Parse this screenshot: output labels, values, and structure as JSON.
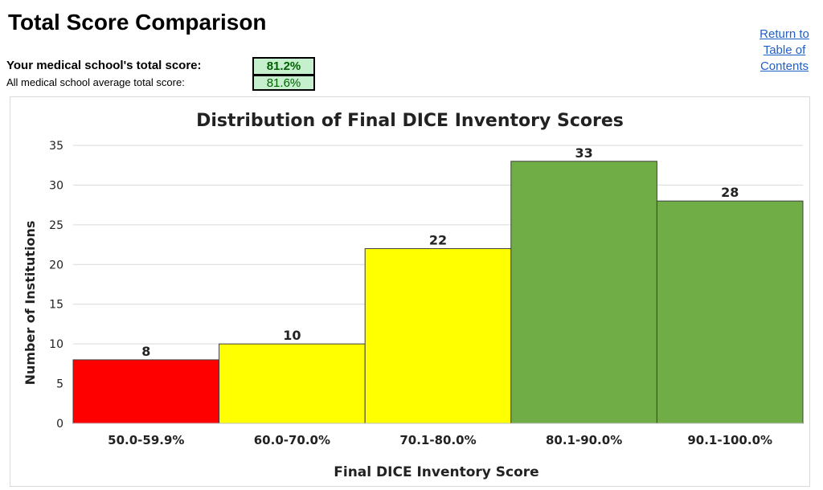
{
  "header": {
    "title": "Total Score Comparison",
    "toc_link": [
      "Return to",
      "Table of",
      "Contents"
    ]
  },
  "scores": {
    "your_label": "Your medical school's total score:",
    "your_value": "81.2%",
    "avg_label": "All medical school average total score:",
    "avg_value": "81.6%"
  },
  "colors": {
    "red": "#ff0000",
    "yellow": "#ffff00",
    "green": "#70ad47",
    "score_box_bg": "#c6efce",
    "score_box_text": "#006100",
    "link": "#1f5fc8"
  },
  "chart_data": {
    "type": "bar",
    "title": "Distribution of Final DICE Inventory Scores",
    "xlabel": "Final DICE Inventory Score",
    "ylabel": "Number of Institutions",
    "categories": [
      "50.0-59.9%",
      "60.0-70.0%",
      "70.1-80.0%",
      "80.1-90.0%",
      "90.1-100.0%"
    ],
    "values": [
      8,
      10,
      22,
      33,
      28
    ],
    "bar_colors": [
      "#ff0000",
      "#ffff00",
      "#ffff00",
      "#70ad47",
      "#70ad47"
    ],
    "ylim": [
      0,
      35
    ],
    "yticks": [
      0,
      5,
      10,
      15,
      20,
      25,
      30,
      35
    ],
    "grid": true,
    "legend": "none"
  }
}
